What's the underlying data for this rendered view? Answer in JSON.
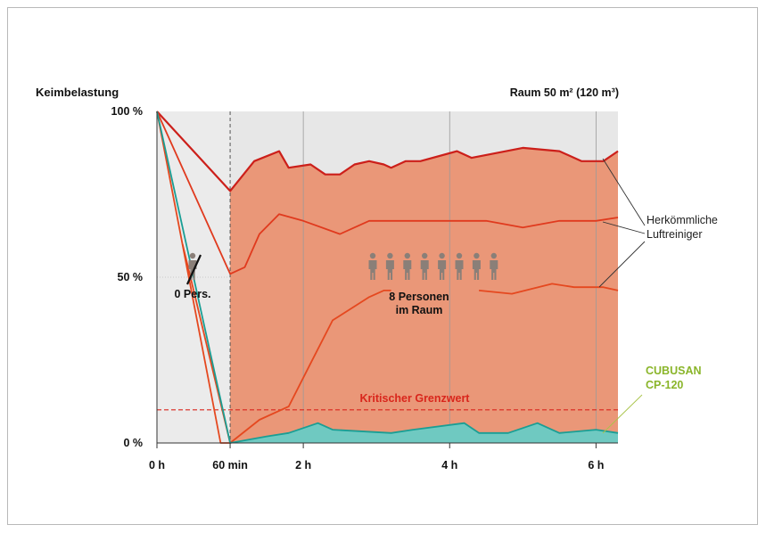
{
  "chart_data": {
    "type": "line",
    "y_title": "Keimbelastung",
    "room_label": "Raum 50 m² (120 m³)",
    "y_ticks": [
      {
        "value": 100,
        "label": "100 %"
      },
      {
        "value": 50,
        "label": "50 %"
      },
      {
        "value": 0,
        "label": "0 %"
      }
    ],
    "x_ticks": [
      {
        "value": 0,
        "label": "0 h"
      },
      {
        "value": 1,
        "label": "60 min"
      },
      {
        "value": 2,
        "label": "2 h"
      },
      {
        "value": 4,
        "label": "4 h"
      },
      {
        "value": 6,
        "label": "6 h"
      }
    ],
    "xlim": [
      0,
      6.3
    ],
    "ylim": [
      0,
      100
    ],
    "person_period_start": 1,
    "threshold": {
      "value": 10,
      "label": "Kritischer Grenzwert",
      "color": "#d9261c"
    },
    "annotations": {
      "zero_persons": "0 Pers.",
      "persons_line1": "8 Personen",
      "persons_line2": "im Raum",
      "conventional_line1": "Herkömmliche",
      "conventional_line2": "Luftreiniger",
      "product_line1": "CUBUSAN",
      "product_line2": "CP-120"
    },
    "series": [
      {
        "name": "Herkömmliche Luftreiniger",
        "color": "#cc1f1a",
        "points": [
          [
            0,
            100
          ],
          [
            1,
            76
          ],
          [
            1.33,
            85
          ],
          [
            1.67,
            88
          ],
          [
            1.8,
            83
          ],
          [
            2.1,
            84
          ],
          [
            2.3,
            81
          ],
          [
            2.5,
            81
          ],
          [
            2.7,
            84
          ],
          [
            2.9,
            85
          ],
          [
            3.1,
            84
          ],
          [
            3.2,
            83
          ],
          [
            3.4,
            85
          ],
          [
            3.6,
            85
          ],
          [
            4.1,
            88
          ],
          [
            4.3,
            86
          ],
          [
            5.0,
            89
          ],
          [
            5.5,
            88
          ],
          [
            5.8,
            85
          ],
          [
            6.1,
            85
          ],
          [
            6.3,
            88
          ]
        ]
      },
      {
        "name": "Herkömmliche Luftreiniger",
        "color": "#e03a1e",
        "points": [
          [
            0,
            100
          ],
          [
            1,
            51
          ],
          [
            1.2,
            53
          ],
          [
            1.4,
            63
          ],
          [
            1.67,
            69
          ],
          [
            2,
            67
          ],
          [
            2.5,
            63
          ],
          [
            2.9,
            67
          ],
          [
            3.5,
            67
          ],
          [
            3.8,
            67
          ],
          [
            4.2,
            67
          ],
          [
            4.5,
            67
          ],
          [
            5.0,
            65
          ],
          [
            5.5,
            67
          ],
          [
            6.0,
            67
          ],
          [
            6.3,
            68
          ]
        ]
      },
      {
        "name": "Herkömmliche Luftreiniger",
        "color": "#e5481f",
        "points": [
          [
            0.35,
            60
          ],
          [
            1,
            0
          ],
          [
            1.4,
            7
          ],
          [
            1.8,
            11
          ],
          [
            2.1,
            24
          ],
          [
            2.4,
            37
          ],
          [
            2.9,
            44
          ],
          [
            3.1,
            46
          ],
          [
            3.2,
            46
          ]
        ]
      },
      {
        "name": "Herkömmliche Luftreiniger",
        "color": "#e5481f",
        "points": [
          [
            4.4,
            46
          ],
          [
            4.85,
            45
          ],
          [
            5.4,
            48
          ],
          [
            5.7,
            47
          ],
          [
            6.1,
            47
          ],
          [
            6.3,
            46
          ]
        ]
      },
      {
        "name": "",
        "color": "#e5481f",
        "points": [
          [
            0,
            100
          ],
          [
            0.87,
            0
          ],
          [
            1,
            0
          ]
        ]
      },
      {
        "name": "CUBUSAN CP-120",
        "color": "#1a9e94",
        "fill": "#6fc9c1",
        "points": [
          [
            0,
            100
          ],
          [
            1,
            0
          ],
          [
            1.5,
            2
          ],
          [
            1.8,
            3
          ],
          [
            2.2,
            6
          ],
          [
            2.4,
            4
          ],
          [
            3.2,
            3
          ],
          [
            3.5,
            4
          ],
          [
            4.2,
            6
          ],
          [
            4.4,
            3
          ],
          [
            4.8,
            3
          ],
          [
            5.2,
            6
          ],
          [
            5.5,
            3
          ],
          [
            6.0,
            4
          ],
          [
            6.3,
            3
          ]
        ]
      }
    ]
  }
}
